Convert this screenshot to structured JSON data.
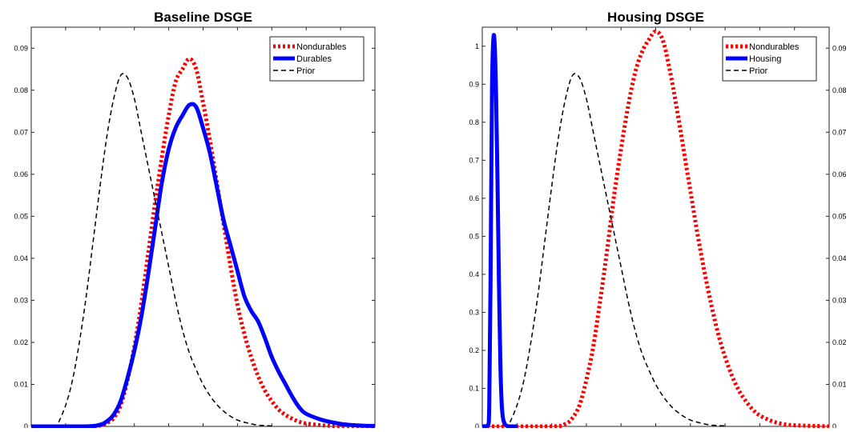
{
  "chart_data": [
    {
      "type": "line",
      "title": "Baseline DSGE",
      "xlabel": "",
      "ylabel": "",
      "xlim": [
        0,
        50
      ],
      "ylim": [
        0,
        0.095
      ],
      "x_ticks": [
        0,
        5,
        10,
        15,
        20,
        25,
        30,
        35,
        40,
        45,
        50
      ],
      "y_ticks": [
        0,
        0.01,
        0.02,
        0.03,
        0.04,
        0.05,
        0.06,
        0.07,
        0.08,
        0.09
      ],
      "y_tick_labels": [
        "0",
        "0.01",
        "0.02",
        "0.03",
        "0.04",
        "0.05",
        "0.06",
        "0.07",
        "0.08",
        "0.09"
      ],
      "grid": false,
      "legend_position": "top-right",
      "series": [
        {
          "name": "Nondurables",
          "color": "#ff0000",
          "style": "dotted-thick",
          "x": [
            0,
            8,
            10,
            11,
            12,
            13,
            14,
            15,
            16,
            17,
            18,
            19,
            20,
            21,
            22,
            23,
            24,
            25,
            26,
            27,
            28,
            29,
            30,
            31,
            32,
            33,
            34,
            35,
            36,
            37,
            38,
            39,
            40,
            42,
            44,
            46,
            48,
            50
          ],
          "y": [
            0,
            0,
            0.0002,
            0.0008,
            0.002,
            0.005,
            0.011,
            0.019,
            0.029,
            0.041,
            0.053,
            0.064,
            0.074,
            0.082,
            0.085,
            0.0875,
            0.085,
            0.077,
            0.068,
            0.058,
            0.048,
            0.038,
            0.029,
            0.022,
            0.0165,
            0.012,
            0.0085,
            0.006,
            0.004,
            0.0027,
            0.0018,
            0.0011,
            0.0007,
            0.0003,
            0.0001,
            0,
            0,
            0
          ]
        },
        {
          "name": "Durables",
          "color": "#0000ff",
          "style": "solid-thick",
          "x": [
            0,
            8,
            10,
            11,
            12,
            13,
            14,
            15,
            16,
            17,
            18,
            19,
            20,
            21,
            22,
            23,
            24,
            25,
            26,
            27,
            28,
            29,
            30,
            31,
            32,
            33,
            34,
            35,
            36,
            37,
            38,
            39,
            40,
            42,
            44,
            46,
            48,
            50
          ],
          "y": [
            0,
            0,
            0.0004,
            0.0012,
            0.0028,
            0.006,
            0.0115,
            0.018,
            0.026,
            0.036,
            0.047,
            0.058,
            0.066,
            0.071,
            0.074,
            0.0765,
            0.076,
            0.071,
            0.065,
            0.057,
            0.049,
            0.043,
            0.037,
            0.031,
            0.0275,
            0.025,
            0.021,
            0.0165,
            0.013,
            0.01,
            0.007,
            0.0045,
            0.003,
            0.0017,
            0.0009,
            0.0004,
            0.0002,
            0.0001
          ]
        },
        {
          "name": "Prior",
          "color": "#000000",
          "style": "dashed",
          "x": [
            4,
            5,
            6,
            7,
            8,
            9,
            10,
            11,
            12,
            13,
            14,
            15,
            16,
            17,
            18,
            19,
            20,
            21,
            22,
            23,
            24,
            25,
            26,
            27,
            28,
            29,
            30,
            31,
            32,
            33,
            34,
            35
          ],
          "y": [
            0.001,
            0.005,
            0.011,
            0.02,
            0.031,
            0.044,
            0.057,
            0.069,
            0.078,
            0.0835,
            0.083,
            0.078,
            0.07,
            0.062,
            0.054,
            0.046,
            0.038,
            0.03,
            0.023,
            0.0175,
            0.0135,
            0.01,
            0.0073,
            0.0052,
            0.0036,
            0.0024,
            0.0015,
            0.001,
            0.0006,
            0.0003,
            0.0002,
            0.0001
          ]
        }
      ]
    },
    {
      "type": "line",
      "title": "Housing DSGE",
      "xlabel": "",
      "ylabel": "",
      "xlim": [
        0,
        50
      ],
      "ylim": [
        0,
        1.05
      ],
      "x_ticks": [
        0,
        5,
        10,
        15,
        20,
        25,
        30,
        35,
        40,
        45,
        50
      ],
      "y_ticks": [
        0,
        0.1,
        0.2,
        0.3,
        0.4,
        0.5,
        0.6,
        0.7,
        0.8,
        0.9,
        1
      ],
      "y_tick_labels": [
        "0",
        "0.1",
        "0.2",
        "0.3",
        "0.4",
        "0.5",
        "0.6",
        "0.7",
        "0.8",
        "0.9",
        "1"
      ],
      "y2lim": [
        0,
        0.095
      ],
      "y2_ticks": [
        0,
        0.01,
        0.02,
        0.03,
        0.04,
        0.05,
        0.06,
        0.07,
        0.08,
        0.09
      ],
      "y2_tick_labels": [
        "0",
        "0.01",
        "0.02",
        "0.03",
        "0.04",
        "0.05",
        "0.06",
        "0.07",
        "0.08",
        "0.09"
      ],
      "grid": false,
      "legend_position": "top-right",
      "series": [
        {
          "name": "Nondurables",
          "color": "#ff0000",
          "style": "dotted-thick",
          "axis": "right",
          "x": [
            0,
            10,
            12,
            13,
            14,
            15,
            16,
            17,
            18,
            19,
            20,
            21,
            22,
            23,
            24,
            25,
            26,
            27,
            28,
            29,
            30,
            31,
            32,
            33,
            34,
            35,
            36,
            37,
            38,
            39,
            40,
            42,
            44,
            46,
            48,
            50
          ],
          "y": [
            0,
            0,
            0.0006,
            0.002,
            0.005,
            0.011,
            0.019,
            0.03,
            0.042,
            0.055,
            0.066,
            0.076,
            0.084,
            0.089,
            0.092,
            0.094,
            0.092,
            0.085,
            0.076,
            0.066,
            0.056,
            0.046,
            0.037,
            0.029,
            0.022,
            0.0165,
            0.012,
            0.0085,
            0.006,
            0.004,
            0.0026,
            0.0011,
            0.0004,
            0.0002,
            0.0001,
            0
          ]
        },
        {
          "name": "Housing",
          "color": "#0000ff",
          "style": "solid-thick",
          "axis": "left",
          "x": [
            0,
            0.8,
            1.0,
            1.2,
            1.4,
            1.6,
            1.8,
            2.0,
            2.2,
            2.4,
            2.6,
            2.8,
            3.0,
            3.3,
            3.6,
            4.0,
            5.0
          ],
          "y": [
            0,
            0.002,
            0.05,
            0.4,
            0.88,
            1.02,
            1.0,
            0.86,
            0.64,
            0.38,
            0.17,
            0.06,
            0.02,
            0.005,
            0.001,
            0,
            0
          ]
        },
        {
          "name": "Prior",
          "color": "#000000",
          "style": "dashed",
          "axis": "right",
          "x": [
            4,
            5,
            6,
            7,
            8,
            9,
            10,
            11,
            12,
            13,
            14,
            15,
            16,
            17,
            18,
            19,
            20,
            21,
            22,
            23,
            24,
            25,
            26,
            27,
            28,
            29,
            30,
            31,
            32,
            33,
            34,
            35
          ],
          "y": [
            0.001,
            0.005,
            0.011,
            0.02,
            0.031,
            0.044,
            0.057,
            0.069,
            0.078,
            0.0835,
            0.083,
            0.078,
            0.07,
            0.062,
            0.054,
            0.046,
            0.038,
            0.03,
            0.023,
            0.0175,
            0.0135,
            0.01,
            0.0073,
            0.0052,
            0.0036,
            0.0024,
            0.0015,
            0.001,
            0.0006,
            0.0003,
            0.0002,
            0.0001
          ]
        }
      ]
    }
  ]
}
